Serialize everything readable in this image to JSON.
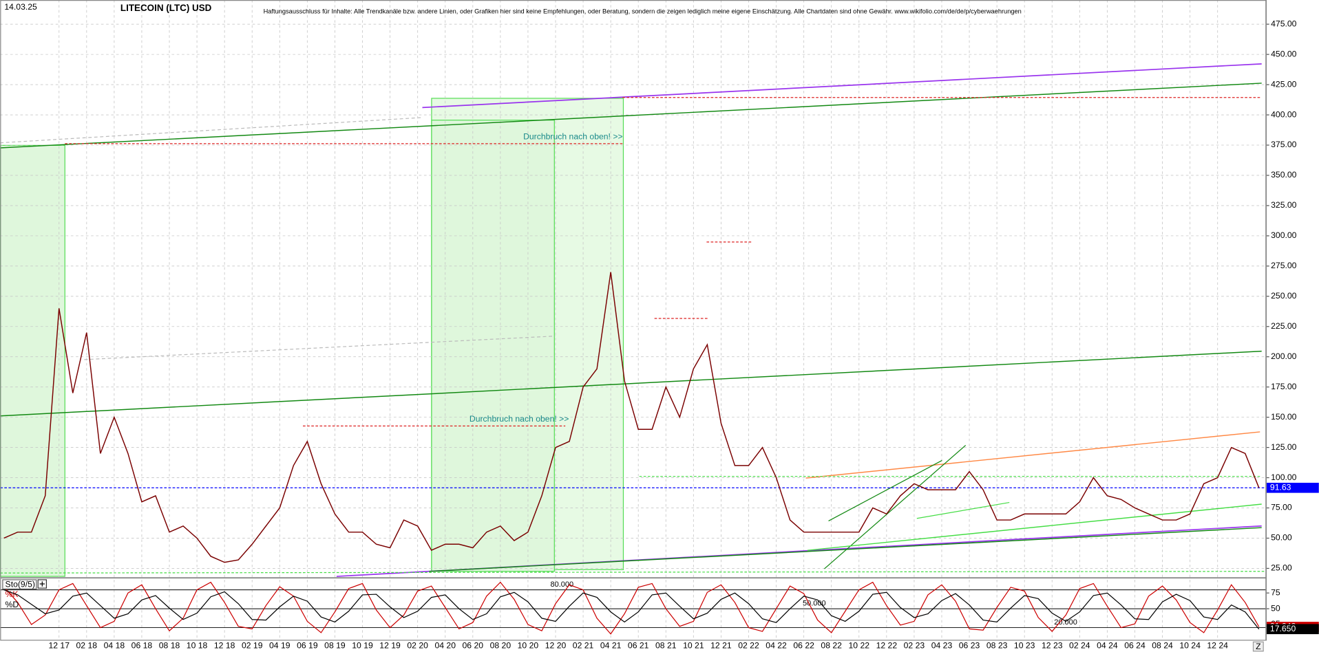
{
  "header": {
    "date": "14.03.25",
    "title": "LITECOIN (LTC) USD",
    "disclaimer": "Haftungsausschluss für Inhalte: Alle Trendkanäle bzw. andere Linien, oder Grafiken hier sind keine Empfehlungen, oder Beratung, sondern die zeigen lediglich meine eigene Einschätzung. Alle Chartdaten sind ohne Gewähr.  www.wikifolio.com/de/de/p/cyberwaehrungen"
  },
  "chart_data": [
    {
      "type": "line",
      "categories": [
        null,
        null,
        null,
        null,
        "12 17",
        null,
        "02 18",
        null,
        "04 18",
        null,
        "06 18",
        null,
        "08 18",
        null,
        "10 18",
        null,
        "12 18",
        null,
        "02 19",
        null,
        "04 19",
        null,
        "06 19",
        null,
        "08 19",
        null,
        "10 19",
        null,
        "12 19",
        null,
        "02 20",
        null,
        "04 20",
        null,
        "06 20",
        null,
        "08 20",
        null,
        "10 20",
        null,
        "12 20",
        null,
        "02 21",
        null,
        "04 21",
        null,
        "06 21",
        null,
        "08 21",
        null,
        "10 21",
        null,
        "12 21",
        null,
        "02 22",
        null,
        "04 22",
        null,
        "06 22",
        null,
        "08 22",
        null,
        "10 22",
        null,
        "12 22",
        null,
        "02 23",
        null,
        "04 23",
        null,
        "06 23",
        null,
        "08 23",
        null,
        "10 23",
        null,
        "12 23",
        null,
        "02 24",
        null,
        "04 24",
        null,
        "06 24",
        null,
        "08 24",
        null,
        "10 24",
        null,
        "12 24",
        null,
        null,
        null
      ],
      "values": [
        50,
        55,
        55,
        85,
        240,
        170,
        220,
        120,
        150,
        120,
        80,
        85,
        55,
        60,
        50,
        35,
        30,
        32,
        45,
        60,
        75,
        110,
        130,
        95,
        70,
        55,
        55,
        45,
        42,
        65,
        60,
        40,
        45,
        45,
        42,
        55,
        60,
        48,
        55,
        85,
        125,
        130,
        175,
        190,
        270,
        180,
        140,
        140,
        175,
        150,
        190,
        210,
        145,
        110,
        110,
        125,
        100,
        65,
        55,
        55,
        55,
        55,
        55,
        75,
        70,
        85,
        95,
        90,
        90,
        90,
        105,
        90,
        65,
        65,
        70,
        70,
        70,
        70,
        80,
        100,
        85,
        82,
        75,
        70,
        65,
        65,
        70,
        95,
        100,
        125,
        120,
        91.63
      ],
      "color": "#7a0000",
      "current_color": "#0000ff",
      "ylim": [
        17,
        495
      ],
      "yticks": [
        {
          "value": 25,
          "label": "25.00"
        },
        {
          "value": 50,
          "label": "50.00"
        },
        {
          "value": 75,
          "label": "75.00"
        },
        {
          "value": 100,
          "label": "100.00"
        },
        {
          "value": 125,
          "label": "125.00"
        },
        {
          "value": 150,
          "label": "150.00"
        },
        {
          "value": 175,
          "label": "175.00"
        },
        {
          "value": 200,
          "label": "200.00"
        },
        {
          "value": 225,
          "label": "225.00"
        },
        {
          "value": 250,
          "label": "250.00"
        },
        {
          "value": 275,
          "label": "275.00"
        },
        {
          "value": 300,
          "label": "300.00"
        },
        {
          "value": 325,
          "label": "325.00"
        },
        {
          "value": 350,
          "label": "350.00"
        },
        {
          "value": 375,
          "label": "375.00"
        },
        {
          "value": 400,
          "label": "400.00"
        },
        {
          "value": 425,
          "label": "425.00"
        },
        {
          "value": 450,
          "label": "450.00"
        },
        {
          "value": 475,
          "label": "475.00"
        }
      ],
      "grid": true,
      "annotations": [
        "Durchbruch nach oben! >>",
        "Durchbruch nach oben! >>"
      ]
    },
    {
      "type": "line",
      "title": "Sto(9/5)",
      "series": [
        {
          "name": "%K",
          "color": "#cc0000",
          "values": [
            85,
            60,
            25,
            40,
            80,
            90,
            55,
            20,
            30,
            75,
            88,
            50,
            15,
            35,
            80,
            92,
            60,
            22,
            18,
            55,
            85,
            70,
            30,
            12,
            45,
            82,
            90,
            48,
            20,
            40,
            78,
            86,
            52,
            18,
            28,
            70,
            92,
            65,
            25,
            15,
            58,
            88,
            80,
            35,
            10,
            42,
            84,
            90,
            50,
            22,
            30,
            76,
            88,
            60,
            20,
            14,
            50,
            86,
            74,
            32,
            12,
            46,
            80,
            92,
            55,
            24,
            30,
            72,
            88,
            62,
            18,
            16,
            52,
            84,
            78,
            36,
            14,
            40,
            82,
            90,
            54,
            20,
            26,
            70,
            86,
            64,
            28,
            12,
            48,
            88,
            60,
            21.242
          ]
        },
        {
          "name": "%D",
          "color": "#000000",
          "values": [
            80,
            72,
            57,
            42,
            48,
            70,
            75,
            55,
            35,
            42,
            64,
            71,
            51,
            33,
            43,
            69,
            77,
            58,
            33,
            32,
            53,
            70,
            62,
            37,
            29,
            46,
            72,
            73,
            53,
            36,
            46,
            68,
            72,
            50,
            33,
            42,
            69,
            76,
            61,
            35,
            30,
            54,
            75,
            68,
            45,
            29,
            45,
            72,
            75,
            54,
            34,
            43,
            65,
            75,
            58,
            34,
            28,
            50,
            70,
            64,
            39,
            30,
            46,
            73,
            76,
            52,
            36,
            42,
            63,
            74,
            56,
            32,
            29,
            51,
            71,
            66,
            43,
            30,
            45,
            71,
            75,
            56,
            34,
            33,
            61,
            73,
            63,
            37,
            33,
            56,
            45,
            17.65
          ],
          "value_labels": [
            null,
            null,
            null,
            null,
            null,
            null,
            null,
            null,
            null,
            null,
            null,
            null,
            null,
            null,
            null,
            null,
            null,
            null,
            null,
            null,
            null,
            null,
            null,
            null,
            null,
            null,
            null,
            null,
            null,
            null,
            null,
            null,
            null,
            null,
            null,
            null,
            null,
            null,
            null,
            null,
            null,
            null,
            null,
            null,
            null,
            null,
            null,
            null,
            null,
            null,
            null,
            null,
            null,
            null,
            null,
            null,
            null,
            null,
            null,
            null,
            null,
            null,
            null,
            null,
            null,
            null,
            null,
            null,
            null,
            null,
            null,
            null,
            null,
            null,
            null,
            null,
            null,
            null,
            null,
            null,
            null,
            null,
            null,
            null,
            null,
            null,
            null,
            null,
            null,
            null,
            null,
            "17.650"
          ]
        }
      ],
      "ylim": [
        0,
        100
      ],
      "yticks": [
        25,
        50,
        75
      ],
      "levels": [
        {
          "value": 80,
          "label": "80.000"
        },
        {
          "value": 50,
          "label": "50.000"
        },
        {
          "value": 20,
          "label": "20.000"
        }
      ]
    }
  ]
}
